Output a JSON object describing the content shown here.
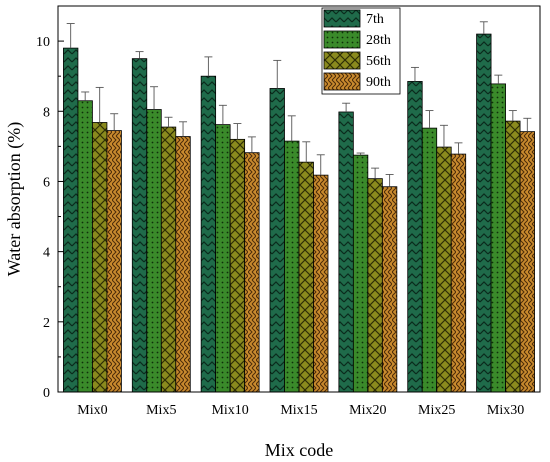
{
  "chart_data": {
    "type": "bar",
    "title": "",
    "xlabel": "Mix code",
    "ylabel": "Water absorption (%)",
    "ylim": [
      0,
      11
    ],
    "yticks": [
      0,
      2,
      4,
      6,
      8,
      10
    ],
    "grid": false,
    "legend_position": "top-right",
    "categories": [
      "Mix0",
      "Mix5",
      "Mix10",
      "Mix15",
      "Mix20",
      "Mix25",
      "Mix30"
    ],
    "series": [
      {
        "name": "7th",
        "color": "#1f6b4a",
        "pattern": "chevron",
        "values": [
          9.8,
          9.5,
          9.0,
          8.65,
          7.98,
          8.85,
          10.2
        ],
        "errors": [
          0.7,
          0.2,
          0.55,
          0.8,
          0.25,
          0.4,
          0.35
        ]
      },
      {
        "name": "28th",
        "color": "#3a8a2a",
        "pattern": "dots",
        "values": [
          8.3,
          8.05,
          7.62,
          7.15,
          6.75,
          7.52,
          8.78
        ],
        "errors": [
          0.25,
          0.65,
          0.55,
          0.72,
          0.06,
          0.5,
          0.25
        ]
      },
      {
        "name": "56th",
        "color": "#8a8a1e",
        "pattern": "diamond",
        "values": [
          7.68,
          7.55,
          7.2,
          6.55,
          6.08,
          6.98,
          7.72
        ],
        "errors": [
          1.0,
          0.28,
          0.45,
          0.58,
          0.3,
          0.62,
          0.3
        ]
      },
      {
        "name": "90th",
        "color": "#c98a2e",
        "pattern": "herringbone",
        "values": [
          7.45,
          7.28,
          6.82,
          6.18,
          5.85,
          6.78,
          7.42
        ],
        "errors": [
          0.48,
          0.42,
          0.45,
          0.58,
          0.35,
          0.32,
          0.38
        ]
      }
    ]
  }
}
